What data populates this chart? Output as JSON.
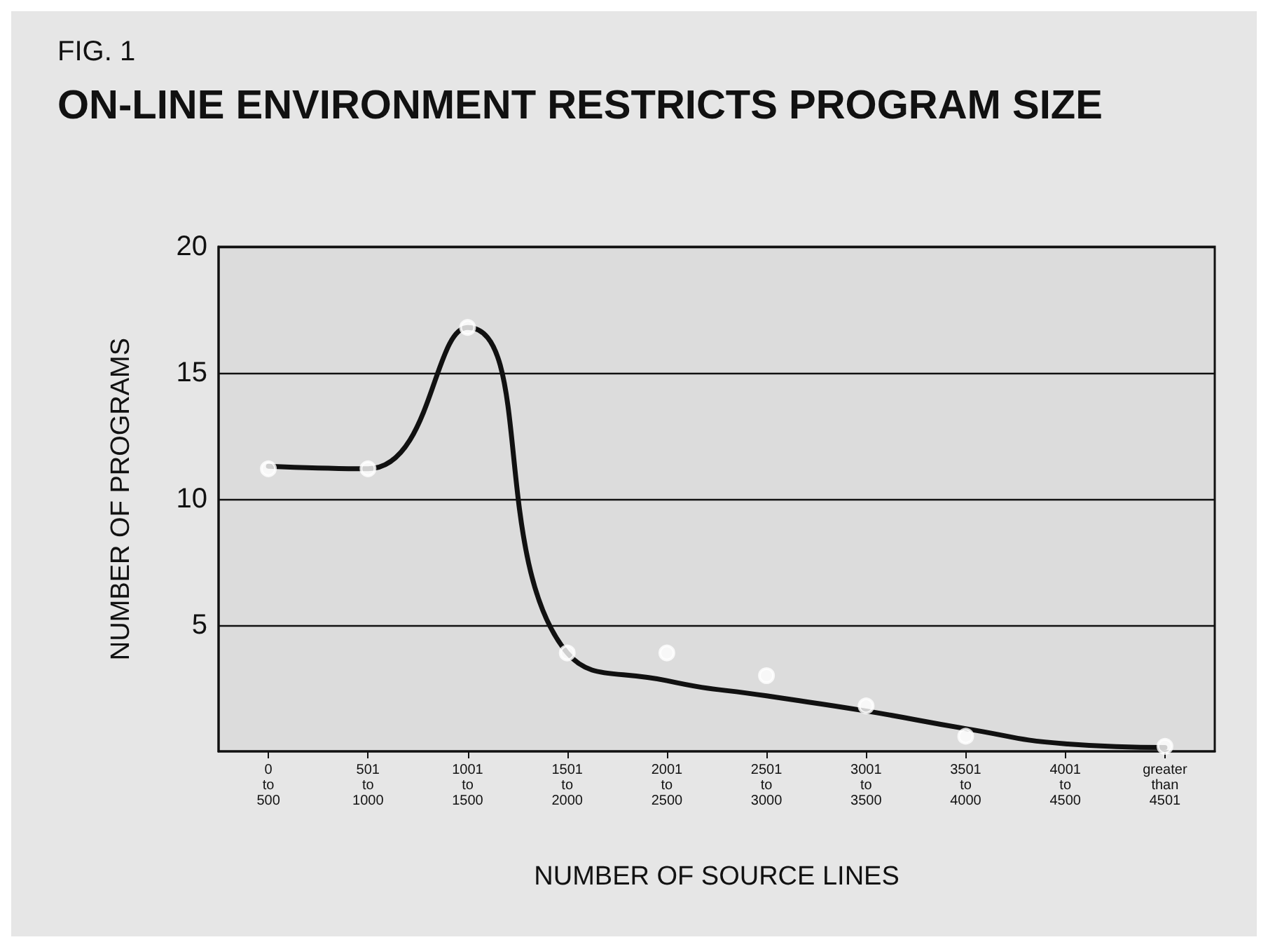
{
  "chart_data": {
    "type": "scatter",
    "subtitle": "FIG. 1",
    "title": "ON-LINE ENVIRONMENT RESTRICTS PROGRAM SIZE",
    "xlabel": "NUMBER OF SOURCE LINES",
    "ylabel": "NUMBER OF PROGRAMS",
    "categories": [
      "0\nto\n500",
      "501\nto\n1000",
      "1001\nto\n1500",
      "1501\nto\n2000",
      "2001\nto\n2500",
      "2501\nto\n3000",
      "3001\nto\n3500",
      "3501\nto\n4000",
      "4001\nto\n4500",
      "greater\nthan\n4501"
    ],
    "series": [
      {
        "type": "line",
        "color": "#111111",
        "marker": "none",
        "line_style": "solid",
        "values": [
          11.3,
          11.2,
          16.8,
          3.9,
          2.8,
          2.2,
          1.6,
          0.9,
          0.3,
          0.15
        ]
      },
      {
        "color": "#ffffff",
        "marker": "circle",
        "values": [
          11.2,
          11.2,
          16.8,
          3.9,
          3.9,
          3.0,
          1.8,
          0.6,
          null,
          0.2
        ]
      }
    ],
    "ylim": [
      0,
      20
    ],
    "yticks": [
      5,
      10,
      15,
      20
    ],
    "grid": "y"
  }
}
